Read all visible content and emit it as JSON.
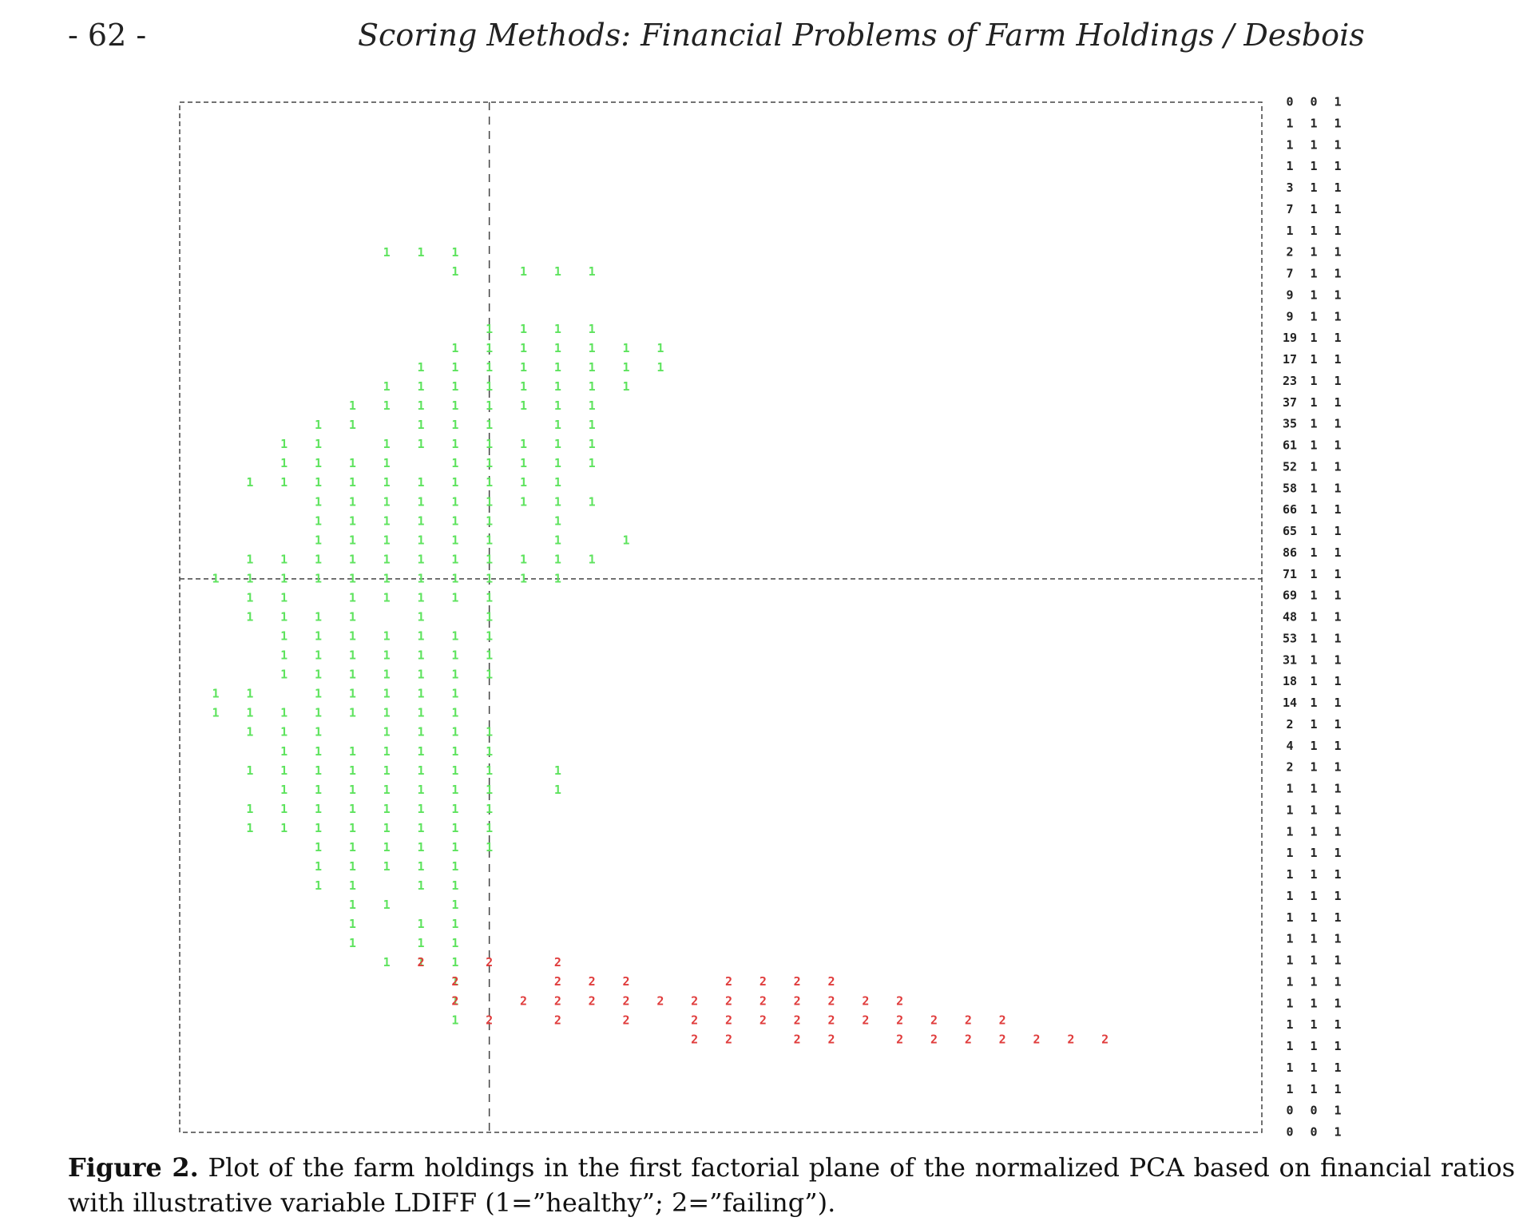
{
  "header": {
    "page_number": "- 62 -",
    "running_title": "Scoring Methods: Financial Problems of Farm Holdings / Desbois"
  },
  "colors": {
    "healthy": "#5ee35e",
    "failing": "#e03c3c",
    "frame": "#444444",
    "text": "#222222"
  },
  "chart_data": {
    "type": "scatter",
    "title": "",
    "xlabel": "",
    "ylabel": "",
    "xlim": [
      0,
      30
    ],
    "ylim": [
      -4,
      48
    ],
    "reference_lines": {
      "x": 8,
      "y": 24
    },
    "series": [
      {
        "name": "1",
        "points": [
          [
            7,
            1
          ],
          [
            7,
            2
          ],
          [
            7,
            3
          ],
          [
            5,
            4
          ],
          [
            6,
            4
          ],
          [
            7,
            4
          ],
          [
            4,
            5
          ],
          [
            6,
            5
          ],
          [
            7,
            5
          ],
          [
            4,
            6
          ],
          [
            6,
            6
          ],
          [
            7,
            6
          ],
          [
            4,
            7
          ],
          [
            5,
            7
          ],
          [
            7,
            7
          ],
          [
            3,
            8
          ],
          [
            4,
            8
          ],
          [
            6,
            8
          ],
          [
            7,
            8
          ],
          [
            3,
            9
          ],
          [
            4,
            9
          ],
          [
            5,
            9
          ],
          [
            6,
            9
          ],
          [
            7,
            9
          ],
          [
            3,
            10
          ],
          [
            4,
            10
          ],
          [
            5,
            10
          ],
          [
            6,
            10
          ],
          [
            7,
            10
          ],
          [
            8,
            10
          ],
          [
            1,
            11
          ],
          [
            2,
            11
          ],
          [
            3,
            11
          ],
          [
            4,
            11
          ],
          [
            5,
            11
          ],
          [
            6,
            11
          ],
          [
            7,
            11
          ],
          [
            8,
            11
          ],
          [
            1,
            12
          ],
          [
            2,
            12
          ],
          [
            3,
            12
          ],
          [
            4,
            12
          ],
          [
            5,
            12
          ],
          [
            6,
            12
          ],
          [
            7,
            12
          ],
          [
            8,
            12
          ],
          [
            2,
            13
          ],
          [
            3,
            13
          ],
          [
            4,
            13
          ],
          [
            5,
            13
          ],
          [
            6,
            13
          ],
          [
            7,
            13
          ],
          [
            8,
            13
          ],
          [
            10,
            13
          ],
          [
            1,
            14
          ],
          [
            2,
            14
          ],
          [
            3,
            14
          ],
          [
            4,
            14
          ],
          [
            5,
            14
          ],
          [
            6,
            14
          ],
          [
            7,
            14
          ],
          [
            8,
            14
          ],
          [
            10,
            14
          ],
          [
            2,
            15
          ],
          [
            3,
            15
          ],
          [
            4,
            15
          ],
          [
            5,
            15
          ],
          [
            6,
            15
          ],
          [
            7,
            15
          ],
          [
            8,
            15
          ],
          [
            1,
            16
          ],
          [
            2,
            16
          ],
          [
            3,
            16
          ],
          [
            5,
            16
          ],
          [
            6,
            16
          ],
          [
            7,
            16
          ],
          [
            8,
            16
          ],
          [
            0,
            17
          ],
          [
            1,
            17
          ],
          [
            2,
            17
          ],
          [
            3,
            17
          ],
          [
            4,
            17
          ],
          [
            5,
            17
          ],
          [
            6,
            17
          ],
          [
            7,
            17
          ],
          [
            0,
            18
          ],
          [
            1,
            18
          ],
          [
            3,
            18
          ],
          [
            4,
            18
          ],
          [
            5,
            18
          ],
          [
            6,
            18
          ],
          [
            7,
            18
          ],
          [
            2,
            19
          ],
          [
            3,
            19
          ],
          [
            4,
            19
          ],
          [
            5,
            19
          ],
          [
            6,
            19
          ],
          [
            7,
            19
          ],
          [
            8,
            19
          ],
          [
            2,
            20
          ],
          [
            3,
            20
          ],
          [
            4,
            20
          ],
          [
            5,
            20
          ],
          [
            6,
            20
          ],
          [
            7,
            20
          ],
          [
            8,
            20
          ],
          [
            2,
            21
          ],
          [
            3,
            21
          ],
          [
            4,
            21
          ],
          [
            5,
            21
          ],
          [
            6,
            21
          ],
          [
            7,
            21
          ],
          [
            8,
            21
          ],
          [
            1,
            22
          ],
          [
            2,
            22
          ],
          [
            3,
            22
          ],
          [
            4,
            22
          ],
          [
            6,
            22
          ],
          [
            8,
            22
          ],
          [
            1,
            23
          ],
          [
            2,
            23
          ],
          [
            4,
            23
          ],
          [
            5,
            23
          ],
          [
            6,
            23
          ],
          [
            7,
            23
          ],
          [
            8,
            23
          ],
          [
            0,
            24
          ],
          [
            1,
            24
          ],
          [
            2,
            24
          ],
          [
            3,
            24
          ],
          [
            4,
            24
          ],
          [
            5,
            24
          ],
          [
            6,
            24
          ],
          [
            7,
            24
          ],
          [
            8,
            24
          ],
          [
            9,
            24
          ],
          [
            10,
            24
          ],
          [
            1,
            25
          ],
          [
            2,
            25
          ],
          [
            3,
            25
          ],
          [
            4,
            25
          ],
          [
            5,
            25
          ],
          [
            6,
            25
          ],
          [
            7,
            25
          ],
          [
            8,
            25
          ],
          [
            9,
            25
          ],
          [
            10,
            25
          ],
          [
            11,
            25
          ],
          [
            3,
            26
          ],
          [
            4,
            26
          ],
          [
            5,
            26
          ],
          [
            6,
            26
          ],
          [
            7,
            26
          ],
          [
            8,
            26
          ],
          [
            10,
            26
          ],
          [
            12,
            26
          ],
          [
            3,
            27
          ],
          [
            4,
            27
          ],
          [
            5,
            27
          ],
          [
            6,
            27
          ],
          [
            7,
            27
          ],
          [
            8,
            27
          ],
          [
            10,
            27
          ],
          [
            3,
            28
          ],
          [
            4,
            28
          ],
          [
            5,
            28
          ],
          [
            6,
            28
          ],
          [
            7,
            28
          ],
          [
            8,
            28
          ],
          [
            9,
            28
          ],
          [
            10,
            28
          ],
          [
            11,
            28
          ],
          [
            1,
            29
          ],
          [
            2,
            29
          ],
          [
            3,
            29
          ],
          [
            4,
            29
          ],
          [
            5,
            29
          ],
          [
            6,
            29
          ],
          [
            7,
            29
          ],
          [
            8,
            29
          ],
          [
            9,
            29
          ],
          [
            10,
            29
          ],
          [
            2,
            30
          ],
          [
            3,
            30
          ],
          [
            4,
            30
          ],
          [
            5,
            30
          ],
          [
            7,
            30
          ],
          [
            8,
            30
          ],
          [
            9,
            30
          ],
          [
            10,
            30
          ],
          [
            11,
            30
          ],
          [
            2,
            31
          ],
          [
            3,
            31
          ],
          [
            5,
            31
          ],
          [
            6,
            31
          ],
          [
            7,
            31
          ],
          [
            8,
            31
          ],
          [
            9,
            31
          ],
          [
            10,
            31
          ],
          [
            11,
            31
          ],
          [
            3,
            32
          ],
          [
            4,
            32
          ],
          [
            6,
            32
          ],
          [
            7,
            32
          ],
          [
            8,
            32
          ],
          [
            10,
            32
          ],
          [
            11,
            32
          ],
          [
            4,
            33
          ],
          [
            5,
            33
          ],
          [
            6,
            33
          ],
          [
            7,
            33
          ],
          [
            8,
            33
          ],
          [
            9,
            33
          ],
          [
            10,
            33
          ],
          [
            11,
            33
          ],
          [
            5,
            34
          ],
          [
            6,
            34
          ],
          [
            7,
            34
          ],
          [
            8,
            34
          ],
          [
            9,
            34
          ],
          [
            10,
            34
          ],
          [
            11,
            34
          ],
          [
            12,
            34
          ],
          [
            6,
            35
          ],
          [
            7,
            35
          ],
          [
            8,
            35
          ],
          [
            9,
            35
          ],
          [
            10,
            35
          ],
          [
            11,
            35
          ],
          [
            12,
            35
          ],
          [
            13,
            35
          ],
          [
            7,
            36
          ],
          [
            8,
            36
          ],
          [
            9,
            36
          ],
          [
            10,
            36
          ],
          [
            11,
            36
          ],
          [
            12,
            36
          ],
          [
            13,
            36
          ],
          [
            8,
            37
          ],
          [
            9,
            37
          ],
          [
            10,
            37
          ],
          [
            11,
            37
          ],
          [
            7,
            40
          ],
          [
            9,
            40
          ],
          [
            10,
            40
          ],
          [
            11,
            40
          ],
          [
            5,
            41
          ],
          [
            6,
            41
          ],
          [
            7,
            41
          ]
        ]
      },
      {
        "name": "2",
        "points": [
          [
            6,
            4
          ],
          [
            8,
            4
          ],
          [
            10,
            4
          ],
          [
            7,
            3
          ],
          [
            10,
            3
          ],
          [
            11,
            3
          ],
          [
            12,
            3
          ],
          [
            15,
            3
          ],
          [
            16,
            3
          ],
          [
            17,
            3
          ],
          [
            18,
            3
          ],
          [
            7,
            2
          ],
          [
            9,
            2
          ],
          [
            10,
            2
          ],
          [
            11,
            2
          ],
          [
            12,
            2
          ],
          [
            13,
            2
          ],
          [
            14,
            2
          ],
          [
            15,
            2
          ],
          [
            16,
            2
          ],
          [
            17,
            2
          ],
          [
            18,
            2
          ],
          [
            19,
            2
          ],
          [
            20,
            2
          ],
          [
            8,
            1
          ],
          [
            10,
            1
          ],
          [
            12,
            1
          ],
          [
            14,
            1
          ],
          [
            15,
            1
          ],
          [
            16,
            1
          ],
          [
            17,
            1
          ],
          [
            18,
            1
          ],
          [
            19,
            1
          ],
          [
            20,
            1
          ],
          [
            21,
            1
          ],
          [
            22,
            1
          ],
          [
            23,
            1
          ],
          [
            14,
            0
          ],
          [
            15,
            0
          ],
          [
            17,
            0
          ],
          [
            18,
            0
          ],
          [
            20,
            0
          ],
          [
            21,
            0
          ],
          [
            22,
            0
          ],
          [
            23,
            0
          ],
          [
            24,
            0
          ],
          [
            25,
            0
          ],
          [
            26,
            0
          ]
        ]
      }
    ]
  },
  "right_column": {
    "rows": [
      [
        "0",
        "0",
        "1"
      ],
      [
        "1",
        "1",
        "1"
      ],
      [
        "1",
        "1",
        "1"
      ],
      [
        "1",
        "1",
        "1"
      ],
      [
        "3",
        "1",
        "1"
      ],
      [
        "7",
        "1",
        "1"
      ],
      [
        "1",
        "1",
        "1"
      ],
      [
        "2",
        "1",
        "1"
      ],
      [
        "7",
        "1",
        "1"
      ],
      [
        "9",
        "1",
        "1"
      ],
      [
        "9",
        "1",
        "1"
      ],
      [
        "19",
        "1",
        "1"
      ],
      [
        "17",
        "1",
        "1"
      ],
      [
        "23",
        "1",
        "1"
      ],
      [
        "37",
        "1",
        "1"
      ],
      [
        "35",
        "1",
        "1"
      ],
      [
        "61",
        "1",
        "1"
      ],
      [
        "52",
        "1",
        "1"
      ],
      [
        "58",
        "1",
        "1"
      ],
      [
        "66",
        "1",
        "1"
      ],
      [
        "65",
        "1",
        "1"
      ],
      [
        "86",
        "1",
        "1"
      ],
      [
        "71",
        "1",
        "1"
      ],
      [
        "69",
        "1",
        "1"
      ],
      [
        "48",
        "1",
        "1"
      ],
      [
        "53",
        "1",
        "1"
      ],
      [
        "31",
        "1",
        "1"
      ],
      [
        "18",
        "1",
        "1"
      ],
      [
        "14",
        "1",
        "1"
      ],
      [
        "2",
        "1",
        "1"
      ],
      [
        "4",
        "1",
        "1"
      ],
      [
        "2",
        "1",
        "1"
      ],
      [
        "1",
        "1",
        "1"
      ],
      [
        "1",
        "1",
        "1"
      ],
      [
        "1",
        "1",
        "1"
      ],
      [
        "1",
        "1",
        "1"
      ],
      [
        "1",
        "1",
        "1"
      ],
      [
        "1",
        "1",
        "1"
      ],
      [
        "1",
        "1",
        "1"
      ],
      [
        "1",
        "1",
        "1"
      ],
      [
        "1",
        "1",
        "1"
      ],
      [
        "1",
        "1",
        "1"
      ],
      [
        "1",
        "1",
        "1"
      ],
      [
        "1",
        "1",
        "1"
      ],
      [
        "1",
        "1",
        "1"
      ],
      [
        "1",
        "1",
        "1"
      ],
      [
        "1",
        "1",
        "1"
      ],
      [
        "0",
        "0",
        "1"
      ],
      [
        "0",
        "0",
        "1"
      ]
    ]
  },
  "caption": {
    "label": "Figure 2.",
    "text": "Plot of the farm holdings in the first factorial plane of the normalized PCA based on financial ratios with illustrative variable LDIFF (1=”healthy”; 2=”failing”)."
  }
}
